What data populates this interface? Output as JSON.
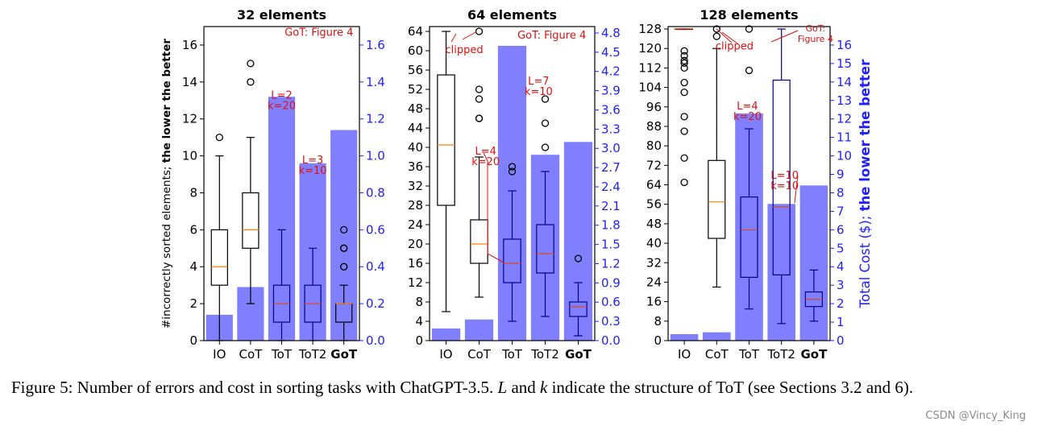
{
  "chart_data": [
    {
      "type": "box-and-bar",
      "title": "32 elements",
      "categories": [
        "IO",
        "CoT",
        "ToT",
        "ToT2",
        "GoT"
      ],
      "ylabel_left": "#incorrectly sorted elements; the lower the better",
      "ylabel_left_plain": "#incorrectly sorted elements; ",
      "ylabel_left_bold": "the lower the better",
      "ylim_left": [
        0,
        17
      ],
      "yticks_left": [
        0,
        2,
        4,
        6,
        8,
        10,
        12,
        14,
        16
      ],
      "ylim_right": [
        0,
        1.7
      ],
      "yticks_right": [
        0.0,
        0.2,
        0.4,
        0.6,
        0.8,
        1.0,
        1.2,
        1.4,
        1.6
      ],
      "ytick_labels_right": [
        "0.0",
        "0.2",
        "0.4",
        "0.6",
        "0.8",
        "1.0",
        "1.2",
        "1.4",
        "1.6"
      ],
      "cost_bars": [
        0.14,
        0.29,
        1.32,
        0.96,
        1.14
      ],
      "boxes": [
        {
          "whislo": 0,
          "q1": 3,
          "med": 4,
          "q3": 6,
          "whishi": 10,
          "fliers": [
            11
          ],
          "style": "black"
        },
        {
          "whislo": 2,
          "q1": 5,
          "med": 6,
          "q3": 8,
          "whishi": 11,
          "fliers": [
            14,
            15
          ],
          "style": "black"
        },
        {
          "whislo": 0,
          "q1": 1,
          "med": 2,
          "q3": 3,
          "whishi": 6,
          "fliers": [],
          "style": "blue"
        },
        {
          "whislo": 0,
          "q1": 1,
          "med": 2,
          "q3": 3,
          "whishi": 5,
          "fliers": [],
          "style": "blue"
        },
        {
          "whislo": 0,
          "q1": 1,
          "med": 2,
          "q3": 2,
          "whishi": 3,
          "fliers": [
            4,
            4,
            5,
            5,
            6
          ],
          "style": "black"
        }
      ],
      "annotations": [
        {
          "lines": [
            "L=2",
            "k=20"
          ],
          "cat": 2,
          "y": 13.1
        },
        {
          "lines": [
            "L=3",
            "k=10"
          ],
          "cat": 3,
          "y": 9.6
        },
        {
          "lines": [
            "GoT: Figure 4"
          ],
          "cat": 3.2,
          "y": 16.5
        }
      ]
    },
    {
      "type": "box-and-bar",
      "title": "64 elements",
      "categories": [
        "IO",
        "CoT",
        "ToT",
        "ToT2",
        "GoT"
      ],
      "ylim_left": [
        0,
        65
      ],
      "yticks_left": [
        0,
        4,
        8,
        12,
        16,
        20,
        24,
        28,
        32,
        36,
        40,
        44,
        48,
        52,
        56,
        60,
        64
      ],
      "ylim_right": [
        0,
        4.9
      ],
      "yticks_right": [
        0.0,
        0.3,
        0.6,
        0.9,
        1.2,
        1.5,
        1.8,
        2.1,
        2.4,
        2.7,
        3.0,
        3.3,
        3.6,
        3.9,
        4.2,
        4.5,
        4.8
      ],
      "ytick_labels_right": [
        "0.0",
        "0.3",
        "0.6",
        "0.9",
        "1.2",
        "1.5",
        "1.8",
        "2.1",
        "2.4",
        "2.7",
        "3.0",
        "3.3",
        "3.6",
        "3.9",
        "4.2",
        "4.5",
        "4.8"
      ],
      "cost_bars": [
        0.19,
        0.33,
        4.6,
        2.9,
        3.1
      ],
      "boxes": [
        {
          "whislo": 6,
          "q1": 28,
          "med": 40.5,
          "q3": 55,
          "whishi": 64,
          "fliers": [],
          "style": "black"
        },
        {
          "whislo": 9,
          "q1": 16,
          "med": 20,
          "q3": 25,
          "whishi": 38,
          "fliers": [
            46,
            46,
            50,
            52,
            64
          ],
          "style": "black"
        },
        {
          "whislo": 4,
          "q1": 12,
          "med": 16,
          "q3": 21,
          "whishi": 31,
          "fliers": [
            35,
            36
          ],
          "style": "blue"
        },
        {
          "whislo": 5,
          "q1": 14,
          "med": 18,
          "q3": 24,
          "whishi": 35,
          "fliers": [
            40,
            45,
            50
          ],
          "style": "blue"
        },
        {
          "whislo": 1,
          "q1": 5,
          "med": 7,
          "q3": 8,
          "whishi": 12,
          "fliers": [
            17
          ],
          "style": "blue"
        }
      ],
      "annotations": [
        {
          "lines": [
            "clipped"
          ],
          "cat": 0.55,
          "y": 59.5
        },
        {
          "lines": [
            "L=4",
            "k=20"
          ],
          "cat": 1.2,
          "y": 38.5
        },
        {
          "lines": [
            "L=7",
            "k=10"
          ],
          "cat": 2.8,
          "y": 53
        },
        {
          "lines": [
            "GoT: Figure 4"
          ],
          "cat": 3.2,
          "y": 62.5
        }
      ]
    },
    {
      "type": "box-and-bar",
      "title": "128 elements",
      "categories": [
        "IO",
        "CoT",
        "ToT",
        "ToT2",
        "GoT"
      ],
      "ylim_left": [
        0,
        129
      ],
      "yticks_left": [
        0,
        8,
        16,
        24,
        32,
        40,
        48,
        56,
        64,
        72,
        80,
        88,
        96,
        104,
        112,
        120,
        128
      ],
      "ylim_right": [
        0,
        17
      ],
      "yticks_right": [
        0,
        1,
        2,
        3,
        4,
        5,
        6,
        7,
        8,
        9,
        10,
        11,
        12,
        13,
        14,
        15,
        16
      ],
      "ytick_labels_right": [
        "0",
        "1",
        "2",
        "3",
        "4",
        "5",
        "6",
        "7",
        "8",
        "9",
        "10",
        "11",
        "12",
        "13",
        "14",
        "15",
        "16"
      ],
      "ylabel_right": "Total Cost ($); the lower the better",
      "ylabel_right_plain": "Total Cost ($); ",
      "ylabel_right_bold": "the lower the better",
      "cost_bars": [
        0.35,
        0.45,
        12.3,
        7.4,
        8.4
      ],
      "boxes": [
        {
          "whislo": 128,
          "q1": 128,
          "med": 128,
          "q3": 128,
          "whishi": 128,
          "fliers": [
            65,
            75,
            86,
            92,
            102,
            106,
            112,
            114,
            115,
            117,
            119
          ],
          "style": "black"
        },
        {
          "whislo": 22,
          "q1": 42,
          "med": 57,
          "q3": 74,
          "whishi": 120,
          "fliers": [
            125,
            128
          ],
          "style": "black"
        },
        {
          "whislo": 13,
          "q1": 26,
          "med": 45.5,
          "q3": 59,
          "whishi": 87,
          "fliers": [
            111,
            128
          ],
          "style": "blue"
        },
        {
          "whislo": 7,
          "q1": 27,
          "med": 55,
          "q3": 107,
          "whishi": 128,
          "fliers": [],
          "style": "blue"
        },
        {
          "whislo": 8,
          "q1": 14,
          "med": 17,
          "q3": 20,
          "whishi": 29,
          "fliers": [],
          "style": "blue"
        }
      ],
      "annotations": [
        {
          "lines": [
            "clipped"
          ],
          "cat": 1.55,
          "y": 119.5
        },
        {
          "lines": [
            "L=4",
            "k=20"
          ],
          "cat": 1.95,
          "y": 95
        },
        {
          "lines": [
            "L=10",
            "k=10"
          ],
          "cat": 3.1,
          "y": 66.5
        },
        {
          "lines": [
            "GoT:",
            "Figure 4"
          ],
          "cat": 4.05,
          "y": 127
        }
      ]
    }
  ],
  "caption": {
    "t1": "Figure 5: Number of errors and cost in sorting tasks with ChatGPT-3.5. ",
    "v1": "L",
    "t2": " and ",
    "v2": "k",
    "t3": " indicate the structure of ToT (see Sections 3.2 and 6)."
  },
  "watermark": "CSDN @Vincy_King",
  "colors": {
    "bar": "#8080ff",
    "box_blue": "#00008b",
    "box_black": "#000000",
    "median": "#ff7f0e",
    "annotation": "#e01010",
    "right_axis": "#1f1fff"
  }
}
